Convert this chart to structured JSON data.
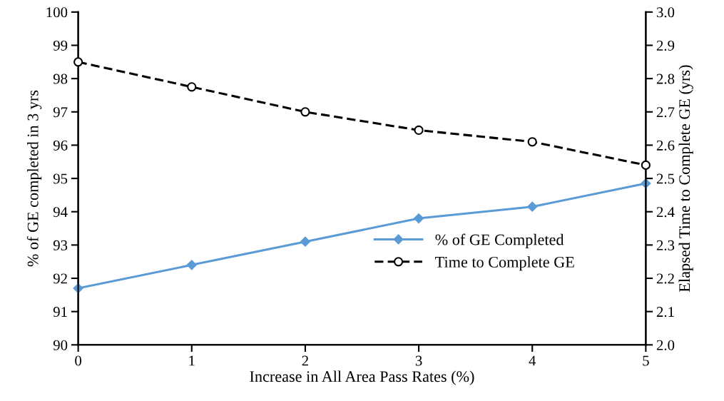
{
  "chart_data": {
    "type": "line",
    "xlabel": "Increase in All Area Pass Rates (%)",
    "ylabel": "% of GE completed in 3 yrs",
    "y2label": "Elapsed Time to Complete GE (yrs)",
    "x": [
      0,
      1,
      2,
      3,
      4,
      5
    ],
    "xlim": [
      0,
      5
    ],
    "xticks": [
      0,
      1,
      2,
      3,
      4,
      5
    ],
    "ylim": [
      90,
      100
    ],
    "yticks": [
      90,
      91,
      92,
      93,
      94,
      95,
      96,
      97,
      98,
      99,
      100
    ],
    "y2lim": [
      2.0,
      3.0
    ],
    "y2ticks": [
      {
        "value": 2.0,
        "label": "2.0"
      },
      {
        "value": 2.1,
        "label": "2.1"
      },
      {
        "value": 2.2,
        "label": "2.2"
      },
      {
        "value": 2.3,
        "label": "2.3"
      },
      {
        "value": 2.4,
        "label": "2.4"
      },
      {
        "value": 2.5,
        "label": "2.5"
      },
      {
        "value": 2.6,
        "label": "2.6"
      },
      {
        "value": 2.7,
        "label": "2.7"
      },
      {
        "value": 2.8,
        "label": "2.8"
      },
      {
        "value": 2.9,
        "label": "2.9"
      },
      {
        "value": 3.0,
        "label": "3.0"
      }
    ],
    "grid": false,
    "legend": "bottom right",
    "series": [
      {
        "name": "% of GE Completed",
        "color": "#5b9bd5",
        "marker": "diamond",
        "line_style": "solid",
        "values": [
          91.7,
          92.4,
          93.1,
          93.8,
          94.15,
          94.85
        ]
      },
      {
        "name": "Time to Complete GE",
        "color": "#000000",
        "marker": "circle",
        "line_style": "dashed",
        "axis": "y2",
        "values": [
          2.85,
          2.775,
          2.7,
          2.645,
          2.61,
          2.54
        ]
      }
    ]
  }
}
